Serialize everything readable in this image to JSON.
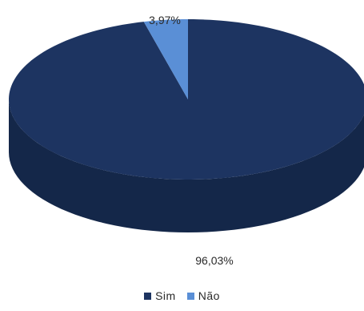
{
  "chart_data": {
    "type": "pie",
    "title": "",
    "series": [
      {
        "name": "Sim",
        "value": 96.03,
        "label": "96,03%",
        "color": "#1d3461",
        "side_color": "#142749"
      },
      {
        "name": "Não",
        "value": 3.97,
        "label": "3,97%",
        "color": "#5a8fd6",
        "side_color": "#3e6fb0"
      }
    ],
    "legend": {
      "placement": "bottom"
    },
    "three_d": true
  }
}
